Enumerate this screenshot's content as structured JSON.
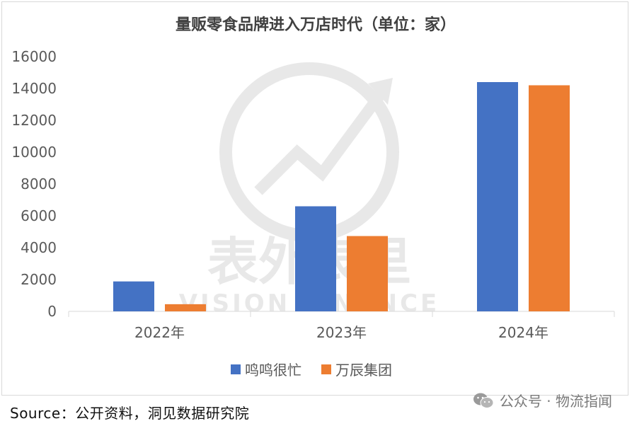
{
  "chart_data": {
    "type": "bar",
    "title": "量贩零食品牌进入万店时代（单位：家）",
    "categories": [
      "2022年",
      "2023年",
      "2024年"
    ],
    "series": [
      {
        "name": "鸣鸣很忙",
        "color": "#4472C4",
        "values": [
          1880,
          6600,
          14400
        ]
      },
      {
        "name": "万辰集团",
        "color": "#ED7D31",
        "values": [
          450,
          4730,
          14200
        ]
      }
    ],
    "ylim": [
      0,
      16000
    ],
    "yticks": [
      "0",
      "2000",
      "4000",
      "6000",
      "8000",
      "10000",
      "12000",
      "14000",
      "16000"
    ],
    "grid": false,
    "legend_position": "bottom"
  },
  "watermark": {
    "cn": "表外表里",
    "en": "VISION FINANCE"
  },
  "footer": {
    "source": "Source：公开资料，洞见数据研究院",
    "wechat_label": "公众号 · 物流指闻"
  }
}
